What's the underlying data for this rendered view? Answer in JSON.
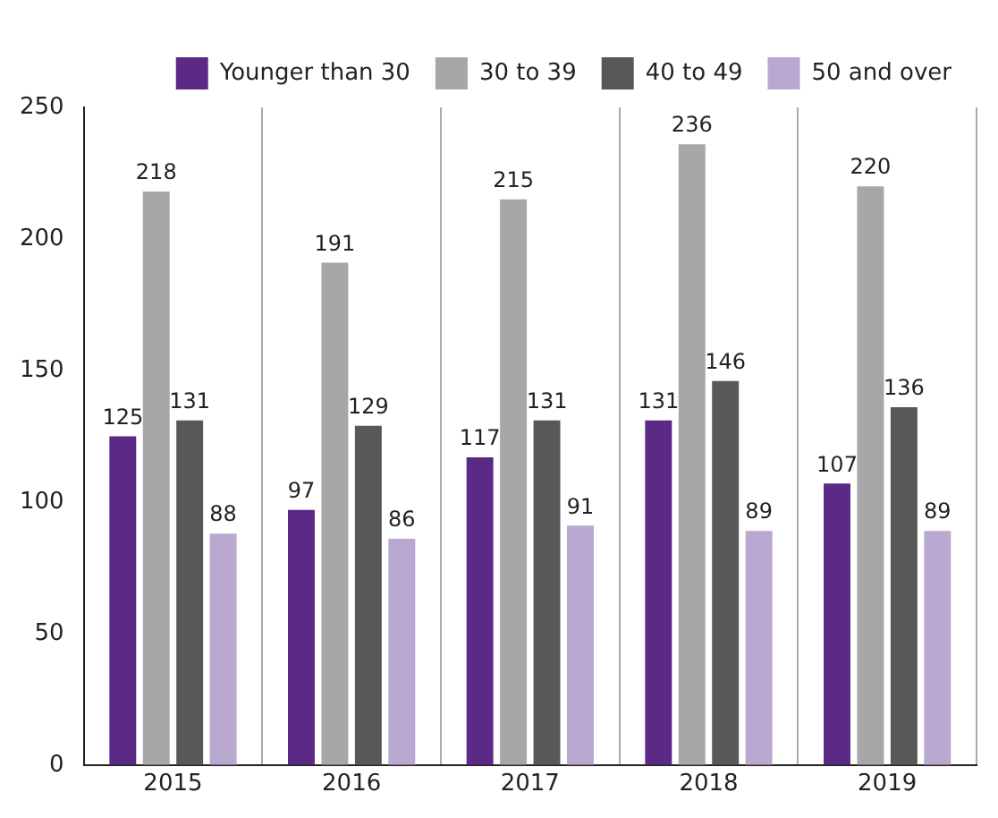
{
  "chart_data": {
    "type": "bar",
    "categories": [
      "2015",
      "2016",
      "2017",
      "2018",
      "2019"
    ],
    "series": [
      {
        "name": "Younger than 30",
        "color": "#5b2a86",
        "values": [
          125,
          97,
          117,
          131,
          107
        ]
      },
      {
        "name": "30 to 39",
        "color": "#a7a7aa",
        "values": [
          218,
          191,
          215,
          236,
          220
        ]
      },
      {
        "name": "40 to 49",
        "color": "#58585a",
        "values": [
          131,
          129,
          131,
          146,
          136
        ]
      },
      {
        "name": "50 and over",
        "color": "#b9a8d0",
        "values": [
          88,
          86,
          91,
          89,
          89
        ]
      }
    ],
    "ylim": [
      0,
      250
    ],
    "yticks": [
      0,
      50,
      100,
      150,
      200,
      250
    ],
    "grid": "x",
    "legend": "top right",
    "data_labels": true
  }
}
